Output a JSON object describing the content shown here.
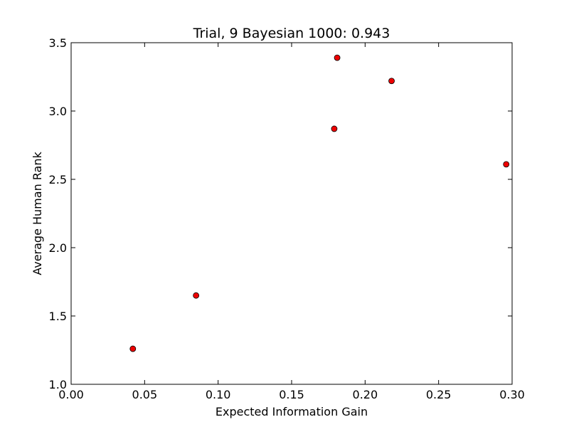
{
  "chart_data": {
    "type": "scatter",
    "title": "Trial, 9 Bayesian 1000: 0.943",
    "xlabel": "Expected Information Gain",
    "ylabel": "Average Human Rank",
    "xlim": [
      0.0,
      0.3
    ],
    "ylim": [
      1.0,
      3.5
    ],
    "xticks": [
      0.0,
      0.05,
      0.1,
      0.15,
      0.2,
      0.25,
      0.3
    ],
    "xtick_labels": [
      "0.00",
      "0.05",
      "0.10",
      "0.15",
      "0.20",
      "0.25",
      "0.30"
    ],
    "yticks": [
      1.0,
      1.5,
      2.0,
      2.5,
      3.0,
      3.5
    ],
    "ytick_labels": [
      "1.0",
      "1.5",
      "2.0",
      "2.5",
      "3.0",
      "3.5"
    ],
    "grid": false,
    "marker_color": "#ee0000",
    "points": [
      {
        "x": 0.042,
        "y": 1.26
      },
      {
        "x": 0.085,
        "y": 1.65
      },
      {
        "x": 0.179,
        "y": 2.87
      },
      {
        "x": 0.181,
        "y": 3.39
      },
      {
        "x": 0.218,
        "y": 3.22
      },
      {
        "x": 0.296,
        "y": 2.61
      }
    ]
  }
}
